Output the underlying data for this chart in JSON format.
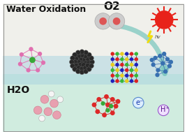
{
  "title": "Water Oxidation",
  "bg_top": "#f0f0eb",
  "bg_bottom": "#d0ecdf",
  "bg_water_strip": "#a8d4e0",
  "arrow_color": "#7ec8c0",
  "text_h2o": "H2O",
  "text_o2": "O2",
  "text_hv": "hv",
  "text_eminus": "e⁻",
  "text_hplus": "H⁺",
  "sun_color": "#e8221a",
  "sun_rays_color": "#e8221a",
  "lightning_color": "#f0dc10",
  "o2_ball_outer": "#cccccc",
  "o2_ball_inner": "#dd5555",
  "water_ball_color": "#e8a0b0",
  "water_ball_white": "#f5f5f5",
  "black_ball_color": "#282828",
  "pink_mol_color": "#e070b0",
  "green_center": "#38a838",
  "crystal_colors": [
    "#2020bb",
    "#dd2020",
    "#38b838",
    "#e8cc20"
  ],
  "blue_mol_color": "#3870b0",
  "figsize": [
    2.68,
    1.89
  ],
  "dpi": 100
}
